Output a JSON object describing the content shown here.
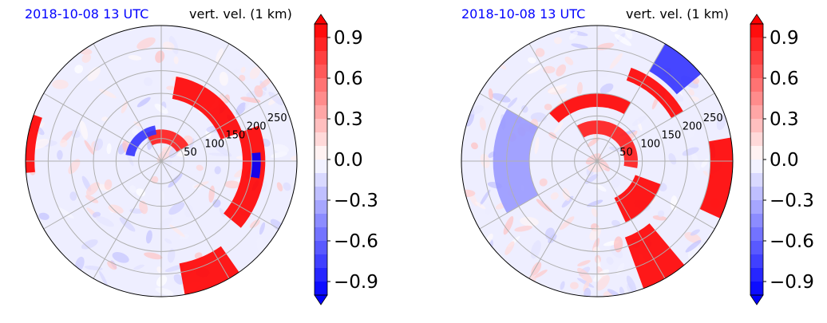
{
  "chart_data": [
    {
      "type": "heatmap",
      "projection": "polar",
      "title_left": "2018-10-08 13 UTC",
      "title_right": "vert. vel. (1 km)",
      "radial_ticks": [
        "50",
        "100",
        "150",
        "200",
        "250"
      ],
      "radial_values": [
        50,
        100,
        150,
        200,
        250
      ],
      "rmax": 300,
      "angular_grid_step_deg": 30,
      "colorbar": {
        "vmin": -1.0,
        "vmax": 1.0,
        "extend": "both",
        "ticks": [
          "0.9",
          "0.6",
          "0.3",
          "0.0",
          "−0.3",
          "−0.6",
          "−0.9"
        ],
        "tick_values": [
          0.9,
          0.6,
          0.3,
          0.0,
          -0.3,
          -0.6,
          -0.9
        ],
        "colormap": "bwr"
      },
      "features": [
        {
          "angle_from_deg": 20,
          "angle_to_deg": 80,
          "r_from": 140,
          "r_to": 190,
          "value": 1.0
        },
        {
          "angle_from_deg": -40,
          "angle_to_deg": 20,
          "r_from": 180,
          "r_to": 230,
          "value": 1.0
        },
        {
          "angle_from_deg": 30,
          "angle_to_deg": 120,
          "r_from": 40,
          "r_to": 70,
          "value": 0.9
        },
        {
          "angle_from_deg": -80,
          "angle_to_deg": -55,
          "r_from": 230,
          "r_to": 300,
          "value": 1.0
        },
        {
          "angle_from_deg": 160,
          "angle_to_deg": 185,
          "r_from": 280,
          "r_to": 300,
          "value": 1.0
        },
        {
          "angle_from_deg": 100,
          "angle_to_deg": 170,
          "r_from": 60,
          "r_to": 80,
          "value": -0.8
        },
        {
          "angle_from_deg": -10,
          "angle_to_deg": 5,
          "r_from": 200,
          "r_to": 220,
          "value": -1.0
        }
      ]
    },
    {
      "type": "heatmap",
      "projection": "polar",
      "title_left": "2018-10-08 13 UTC",
      "title_right": "vert. vel. (1 km)",
      "radial_ticks": [
        "50",
        "100",
        "150",
        "200",
        "250"
      ],
      "radial_values": [
        50,
        100,
        150,
        200,
        250
      ],
      "rmax": 300,
      "angular_grid_step_deg": 30,
      "colorbar": {
        "vmin": -1.0,
        "vmax": 1.0,
        "extend": "both",
        "ticks": [
          "0.9",
          "0.6",
          "0.3",
          "0.0",
          "−0.3",
          "−0.6",
          "−0.9"
        ],
        "tick_values": [
          0.9,
          0.6,
          0.3,
          0.0,
          -0.3,
          -0.6,
          -0.9
        ],
        "colormap": "bwr"
      },
      "features": [
        {
          "angle_from_deg": 60,
          "angle_to_deg": 135,
          "r_from": 120,
          "r_to": 150,
          "value": 1.0
        },
        {
          "angle_from_deg": 30,
          "angle_to_deg": 70,
          "r_from": 190,
          "r_to": 220,
          "value": 1.0
        },
        {
          "angle_from_deg": -10,
          "angle_to_deg": 120,
          "r_from": 60,
          "r_to": 90,
          "value": 0.9
        },
        {
          "angle_from_deg": -65,
          "angle_to_deg": -20,
          "r_from": 90,
          "r_to": 150,
          "value": 1.0
        },
        {
          "angle_from_deg": -70,
          "angle_to_deg": -50,
          "r_from": 180,
          "r_to": 300,
          "value": 1.0
        },
        {
          "angle_from_deg": -25,
          "angle_to_deg": 10,
          "r_from": 250,
          "r_to": 300,
          "value": 1.0
        },
        {
          "angle_from_deg": 40,
          "angle_to_deg": 60,
          "r_from": 230,
          "r_to": 300,
          "value": -0.8
        },
        {
          "angle_from_deg": 150,
          "angle_to_deg": 210,
          "r_from": 150,
          "r_to": 230,
          "value": -0.4
        }
      ]
    }
  ]
}
